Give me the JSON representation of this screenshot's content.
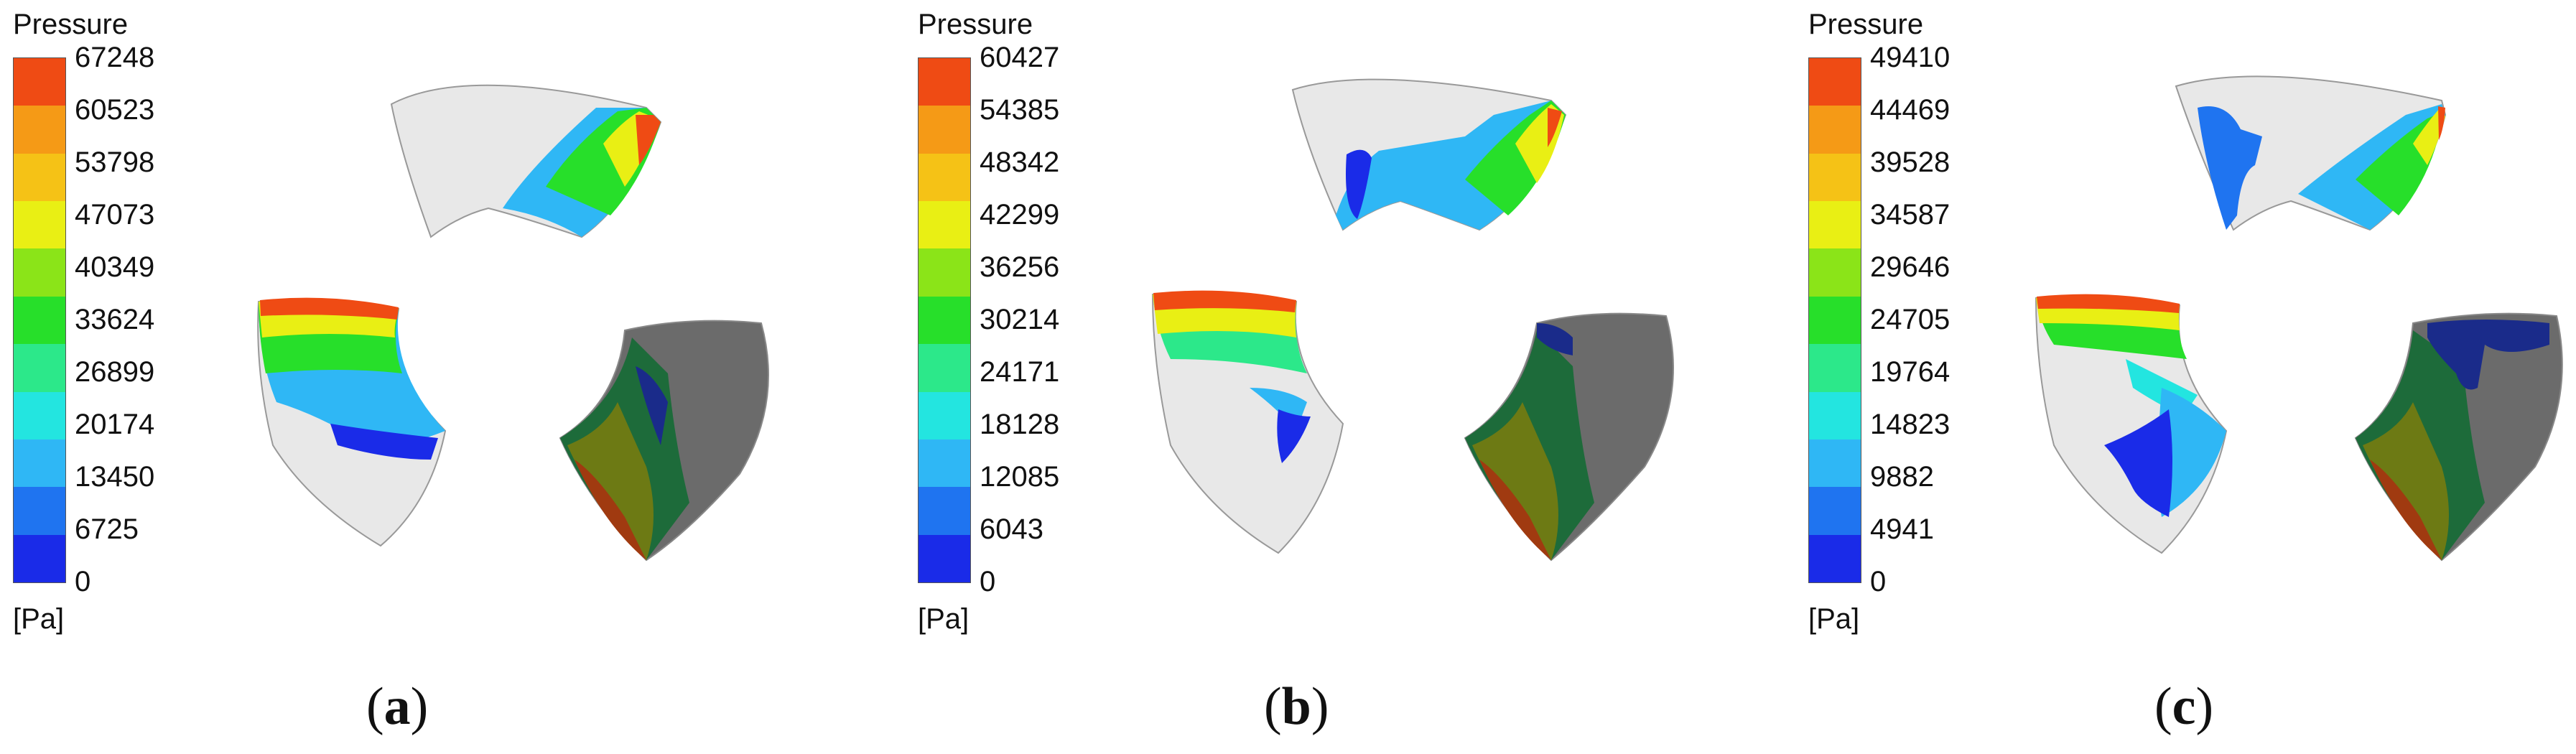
{
  "legend_title": "Pressure",
  "unit": "[Pa]",
  "colors": [
    "#1a2be8",
    "#1f74f0",
    "#2fb7f5",
    "#23e5e0",
    "#2ce88a",
    "#27df2a",
    "#8be418",
    "#e9ef14",
    "#f5c216",
    "#f59a16",
    "#ef4b14"
  ],
  "panels": [
    {
      "caption_open": "(",
      "caption_letter": "a",
      "caption_close": ")",
      "ticks": [
        "67248",
        "60523",
        "53798",
        "47073",
        "40349",
        "33624",
        "26899",
        "20174",
        "13450",
        "6725",
        "0"
      ]
    },
    {
      "caption_open": "(",
      "caption_letter": "b",
      "caption_close": ")",
      "ticks": [
        "60427",
        "54385",
        "48342",
        "42299",
        "36256",
        "30214",
        "24171",
        "18128",
        "12085",
        "6043",
        "0"
      ]
    },
    {
      "caption_open": "(",
      "caption_letter": "c",
      "caption_close": ")",
      "ticks": [
        "49410",
        "44469",
        "39528",
        "34587",
        "29646",
        "24705",
        "19764",
        "14823",
        "9882",
        "4941",
        "0"
      ]
    }
  ]
}
